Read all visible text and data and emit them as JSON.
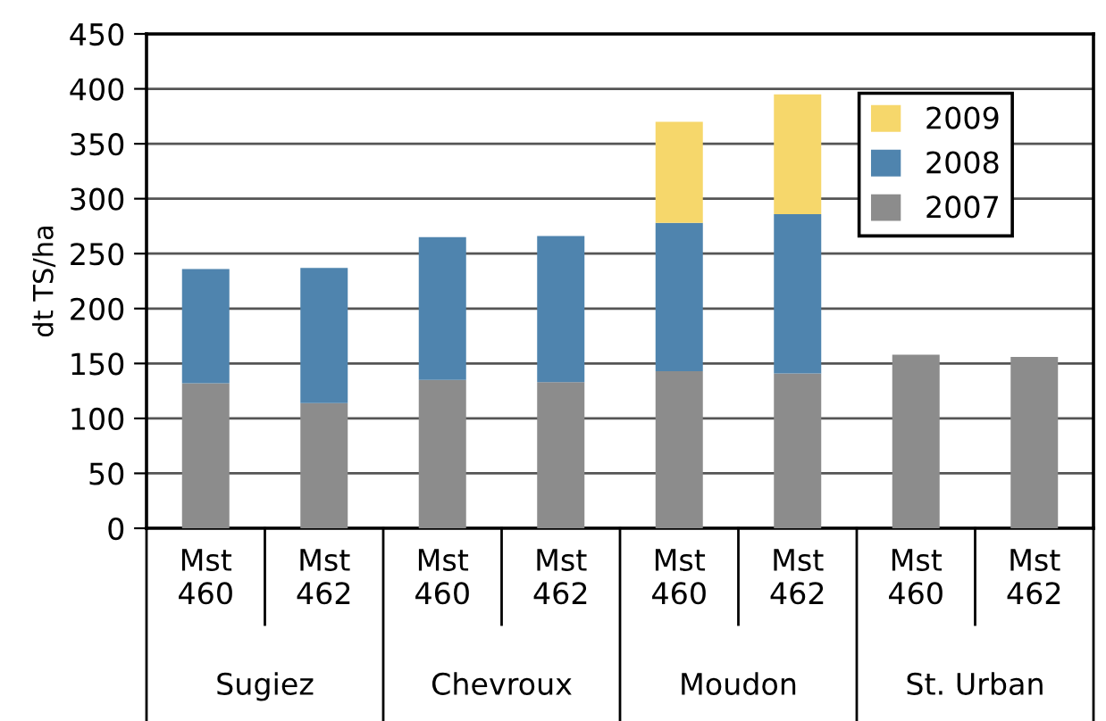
{
  "chart_data": {
    "type": "bar",
    "stacked": true,
    "ylabel": "dt TS/ha",
    "categories": [
      "Mst\n460",
      "Mst\n462",
      "Mst\n460",
      "Mst\n462",
      "Mst\n460",
      "Mst\n462",
      "Mst\n460",
      "Mst\n462"
    ],
    "annotations": [
      "Sugiez",
      "Chevroux",
      "Moudon",
      "St. Urban"
    ],
    "series": [
      {
        "name": "2007",
        "color": "#8c8c8c",
        "values": [
          132,
          114,
          135,
          133,
          143,
          141,
          158,
          156
        ]
      },
      {
        "name": "2008",
        "color": "#4f84ae",
        "values": [
          104,
          123,
          130,
          133,
          135,
          145,
          null,
          null
        ]
      },
      {
        "name": "2009",
        "color": "#f6d76b",
        "values": [
          null,
          null,
          null,
          null,
          92,
          109,
          null,
          null
        ]
      }
    ],
    "ylim": [
      0,
      450
    ],
    "yticks": [
      0,
      50,
      100,
      150,
      200,
      250,
      300,
      350,
      400,
      450
    ],
    "grid": "y",
    "legend": "top right"
  }
}
